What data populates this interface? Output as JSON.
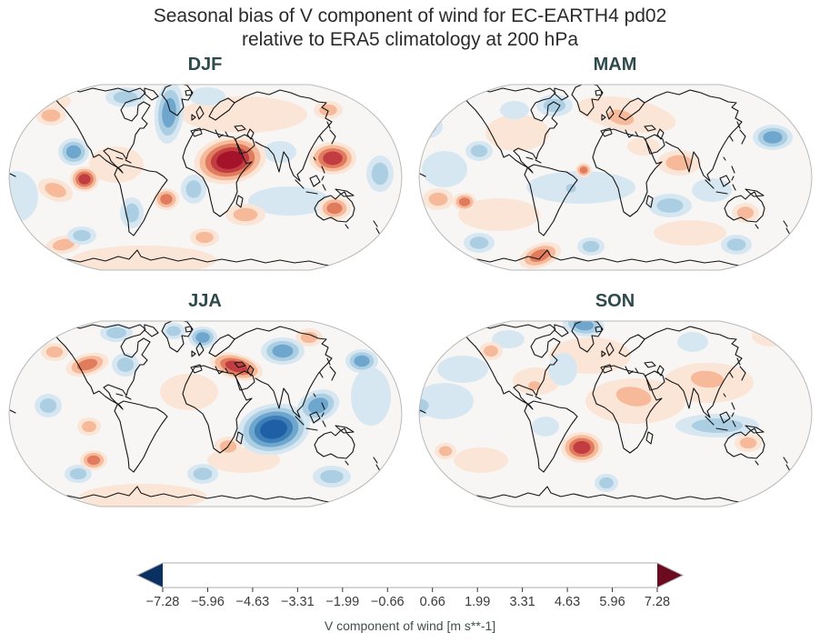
{
  "title": {
    "line1": "Seasonal bias of V component of wind for EC-EARTH4 pd02",
    "line2": "relative to ERA5 climatology at 200 hPa"
  },
  "palette": [
    "#0a3161",
    "#1e5fa6",
    "#3f7fb8",
    "#6ea6ce",
    "#abcee3",
    "#d7e7f1",
    "#f7f6f5",
    "#fbe5d7",
    "#f6ba9a",
    "#e07b5e",
    "#c23d42",
    "#a41329",
    "#6c0b20"
  ],
  "map_outline_color": "#b9b9b9",
  "colorbar": {
    "label": "V component of wind [m s**-1]",
    "ticks": [
      "−7.28",
      "−5.96",
      "−4.63",
      "−3.31",
      "−1.99",
      "−0.66",
      "0.66",
      "1.99",
      "3.31",
      "4.63",
      "5.96",
      "7.28"
    ],
    "tick_color": "#3a3a3a",
    "extend": "both"
  },
  "blob_format": "[cx, cy, rx, ry, rotation_deg, level] level sign: + red bias, − blue bias; |level| = number of nested contour steps",
  "panels": [
    {
      "id": "djf",
      "label": "DJF",
      "blobs": [
        [
          30,
          25,
          40,
          14,
          0,
          1
        ],
        [
          260,
          40,
          70,
          20,
          0,
          1
        ],
        [
          150,
          200,
          80,
          16,
          0,
          1
        ],
        [
          120,
          95,
          30,
          20,
          0,
          1
        ],
        [
          310,
          135,
          45,
          16,
          0,
          -1
        ],
        [
          10,
          130,
          24,
          28,
          0,
          -1
        ],
        [
          300,
          81,
          18,
          12,
          0,
          -1
        ],
        [
          220,
          20,
          20,
          10,
          0,
          -1
        ],
        [
          245,
          90,
          40,
          26,
          -10,
          5
        ],
        [
          358,
          88,
          26,
          18,
          0,
          4
        ],
        [
          178,
          38,
          16,
          34,
          5,
          -3
        ],
        [
          130,
          21,
          22,
          11,
          0,
          -2
        ],
        [
          73,
          81,
          17,
          15,
          0,
          -3
        ],
        [
          48,
          41,
          17,
          11,
          0,
          2
        ],
        [
          85,
          111,
          16,
          14,
          0,
          4
        ],
        [
          175,
          133,
          14,
          12,
          0,
          3
        ],
        [
          53,
          123,
          20,
          12,
          20,
          2
        ],
        [
          62,
          183,
          20,
          10,
          -10,
          2
        ],
        [
          82,
          173,
          16,
          10,
          0,
          -2
        ],
        [
          137,
          148,
          13,
          17,
          0,
          -2
        ],
        [
          205,
          122,
          14,
          16,
          0,
          -2
        ],
        [
          217,
          175,
          16,
          10,
          0,
          2
        ],
        [
          262,
          150,
          22,
          12,
          0,
          2
        ],
        [
          360,
          143,
          18,
          13,
          0,
          3
        ],
        [
          410,
          105,
          15,
          20,
          0,
          -2
        ],
        [
          353,
          35,
          16,
          10,
          0,
          2
        ]
      ]
    },
    {
      "id": "mam",
      "label": "MAM",
      "blobs": [
        [
          230,
          40,
          55,
          18,
          10,
          1
        ],
        [
          110,
          60,
          35,
          20,
          0,
          1
        ],
        [
          90,
          150,
          45,
          18,
          0,
          1
        ],
        [
          300,
          170,
          40,
          14,
          0,
          1
        ],
        [
          180,
          120,
          60,
          18,
          0,
          -1
        ],
        [
          30,
          100,
          25,
          20,
          0,
          -1
        ],
        [
          107,
          35,
          16,
          10,
          0,
          -1
        ],
        [
          249,
          75,
          18,
          10,
          0,
          1
        ],
        [
          52,
          136,
          13,
          10,
          0,
          3
        ],
        [
          135,
          195,
          24,
          13,
          -20,
          3
        ],
        [
          391,
          65,
          22,
          14,
          0,
          -3
        ],
        [
          151,
          30,
          20,
          12,
          0,
          -2
        ],
        [
          224,
          43,
          24,
          13,
          15,
          2
        ],
        [
          288,
          93,
          24,
          14,
          0,
          2
        ],
        [
          183,
          101,
          9,
          8,
          0,
          3
        ],
        [
          169,
          121,
          9,
          8,
          0,
          -2
        ],
        [
          278,
          140,
          24,
          13,
          0,
          -2
        ],
        [
          361,
          148,
          15,
          11,
          0,
          2
        ],
        [
          11,
          53,
          17,
          13,
          0,
          -2
        ],
        [
          68,
          80,
          15,
          11,
          0,
          -2
        ],
        [
          23,
          133,
          17,
          12,
          0,
          2
        ],
        [
          68,
          181,
          17,
          11,
          0,
          -2
        ],
        [
          191,
          185,
          15,
          10,
          0,
          -2
        ],
        [
          351,
          183,
          17,
          11,
          0,
          -2
        ],
        [
          324,
          123,
          22,
          13,
          0,
          -1
        ]
      ]
    },
    {
      "id": "jja",
      "label": "JJA",
      "blobs": [
        [
          20,
          15,
          28,
          13,
          0,
          1
        ],
        [
          150,
          200,
          70,
          14,
          0,
          1
        ],
        [
          200,
          85,
          32,
          20,
          0,
          1
        ],
        [
          400,
          90,
          22,
          32,
          0,
          -1
        ],
        [
          260,
          160,
          40,
          14,
          0,
          1
        ],
        [
          293,
          126,
          40,
          28,
          -10,
          -5
        ],
        [
          342,
          100,
          24,
          17,
          -20,
          -3
        ],
        [
          215,
          25,
          16,
          12,
          0,
          -3
        ],
        [
          303,
          40,
          24,
          15,
          0,
          -3
        ],
        [
          252,
          57,
          30,
          14,
          15,
          4
        ],
        [
          88,
          55,
          24,
          12,
          -15,
          3
        ],
        [
          130,
          55,
          15,
          13,
          0,
          -2
        ],
        [
          183,
          18,
          13,
          9,
          0,
          -2
        ],
        [
          390,
          51,
          18,
          13,
          0,
          -3
        ],
        [
          332,
          25,
          15,
          10,
          0,
          2
        ],
        [
          420,
          23,
          13,
          11,
          0,
          -2
        ],
        [
          90,
          123,
          13,
          10,
          0,
          2
        ],
        [
          95,
          160,
          15,
          11,
          0,
          3
        ],
        [
          45,
          100,
          15,
          13,
          0,
          -2
        ],
        [
          78,
          175,
          15,
          10,
          0,
          -2
        ],
        [
          215,
          175,
          17,
          11,
          0,
          -2
        ],
        [
          243,
          145,
          15,
          11,
          0,
          2
        ],
        [
          357,
          178,
          21,
          12,
          0,
          -2
        ],
        [
          52,
          41,
          15,
          10,
          0,
          2
        ],
        [
          120,
          20,
          18,
          10,
          0,
          -2
        ]
      ]
    },
    {
      "id": "son",
      "label": "SON",
      "blobs": [
        [
          190,
          45,
          45,
          20,
          0,
          1
        ],
        [
          320,
          75,
          50,
          22,
          0,
          1
        ],
        [
          240,
          95,
          55,
          25,
          0,
          1
        ],
        [
          70,
          160,
          30,
          14,
          0,
          1
        ],
        [
          30,
          95,
          32,
          20,
          0,
          -1
        ],
        [
          50,
          60,
          28,
          15,
          0,
          -1
        ],
        [
          388,
          23,
          20,
          12,
          0,
          1
        ],
        [
          131,
          73,
          26,
          15,
          0,
          1
        ],
        [
          183,
          11,
          23,
          13,
          8,
          -3
        ],
        [
          238,
          90,
          32,
          17,
          10,
          2
        ],
        [
          319,
          71,
          30,
          15,
          5,
          2
        ],
        [
          181,
          146,
          23,
          17,
          0,
          4
        ],
        [
          81,
          40,
          13,
          10,
          0,
          2
        ],
        [
          129,
          78,
          11,
          8,
          0,
          2
        ],
        [
          1,
          100,
          19,
          13,
          0,
          -2
        ],
        [
          330,
          122,
          46,
          13,
          0,
          -2
        ],
        [
          141,
          123,
          15,
          11,
          0,
          -1
        ],
        [
          208,
          185,
          13,
          10,
          0,
          -2
        ],
        [
          364,
          141,
          15,
          10,
          0,
          2
        ],
        [
          303,
          30,
          17,
          11,
          0,
          -1
        ],
        [
          31,
          150,
          12,
          9,
          0,
          2
        ],
        [
          100,
          27,
          18,
          10,
          0,
          -1
        ],
        [
          160,
          60,
          16,
          18,
          0,
          -1
        ]
      ]
    }
  ],
  "chart_data": {
    "type": "heatmap",
    "subtype": "filled-contour-world-maps",
    "projection": "Robinson",
    "title": "Seasonal bias of V component of wind for EC-EARTH4 pd02 relative to ERA5 climatology at 200 hPa",
    "variable": "V component of wind bias",
    "units": "m s**-1",
    "pressure_level_hPa": 200,
    "model": "EC-EARTH4 pd02",
    "reference": "ERA5 climatology",
    "seasons": [
      "DJF",
      "MAM",
      "JJA",
      "SON"
    ],
    "contour_levels": [
      -7.28,
      -5.96,
      -4.63,
      -3.31,
      -1.99,
      -0.66,
      0.66,
      1.99,
      3.31,
      4.63,
      5.96,
      7.28
    ],
    "colormap": "RdBu_r diverging, colorbar extended with arrows on both ends",
    "legend_position": "bottom horizontal colorbar",
    "notable_anomalies": {
      "DJF": [
        "strong positive bias ~+6 m/s over Sahara/Sahel and Arabian Peninsula",
        "positive bias ~+4 over Japan / NW Pacific",
        "negative bias ~−3 over Greenland and the North Atlantic",
        "negative bias ~−3 over NE Pacific",
        "positive bias ~+4 in SE Pacific off Peru",
        "positive bias ~+3 over western Australia"
      ],
      "MAM": [
        "overall weak biases within ±2 m/s",
        "positive bias ~+3 near Antarctic Peninsula",
        "positive bias ~+3 west of South America",
        "negative bias ~−3 east of Japan"
      ],
      "JJA": [
        "strong negative bias ~−6 m/s over central Indian Ocean",
        "positive bias ~+4 over eastern Mediterranean / Middle East",
        "negative bias ~−3 over Scandinavia and western Russia",
        "positive bias ~+3 over western North America",
        "negative bias ~−3 east of Japan"
      ],
      "SON": [
        "negative bias ~−3 over Greenland",
        "positive bias ~+4 in South Atlantic east of Argentina",
        "broad weak positive bias ~+2 over North Africa, Middle East and Asia",
        "weak negative band over eastern Indian Ocean / Indonesia"
      ]
    }
  }
}
